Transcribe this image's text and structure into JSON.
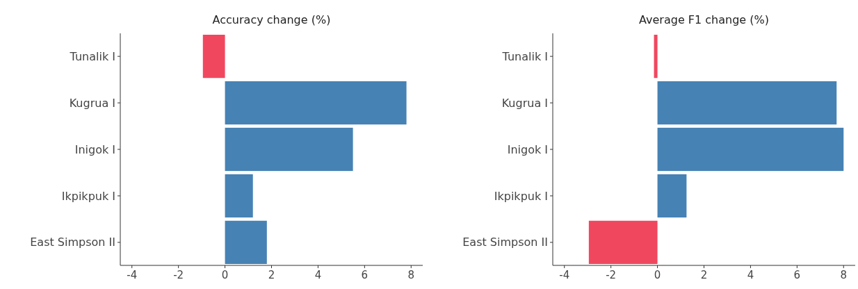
{
  "chart_data": [
    {
      "type": "bar",
      "orientation": "horizontal",
      "title": "Accuracy change (%)",
      "categories": [
        "Tunalik I",
        "Kugrua I",
        "Inigok I",
        "Ikpikpuk I",
        "East Simpson II"
      ],
      "values": [
        -0.95,
        7.8,
        5.5,
        1.2,
        1.8
      ],
      "colors": [
        "#f0475f",
        "#4682b4",
        "#4682b4",
        "#4682b4",
        "#4682b4"
      ],
      "xlim": [
        -4.5,
        8.5
      ],
      "xticks": [
        -4,
        -2,
        0,
        2,
        4,
        6,
        8
      ],
      "grid": false
    },
    {
      "type": "bar",
      "orientation": "horizontal",
      "title": "Average F1 change (%)",
      "categories": [
        "Tunalik I",
        "Kugrua I",
        "Inigok I",
        "Ikpikpuk I",
        "East Simpson II"
      ],
      "values": [
        -0.15,
        7.7,
        8.0,
        1.25,
        -2.95
      ],
      "colors": [
        "#f0475f",
        "#4682b4",
        "#4682b4",
        "#4682b4",
        "#f0475f"
      ],
      "xlim": [
        -4.5,
        8.5
      ],
      "xticks": [
        -4,
        -2,
        0,
        2,
        4,
        6,
        8
      ],
      "grid": false
    }
  ]
}
